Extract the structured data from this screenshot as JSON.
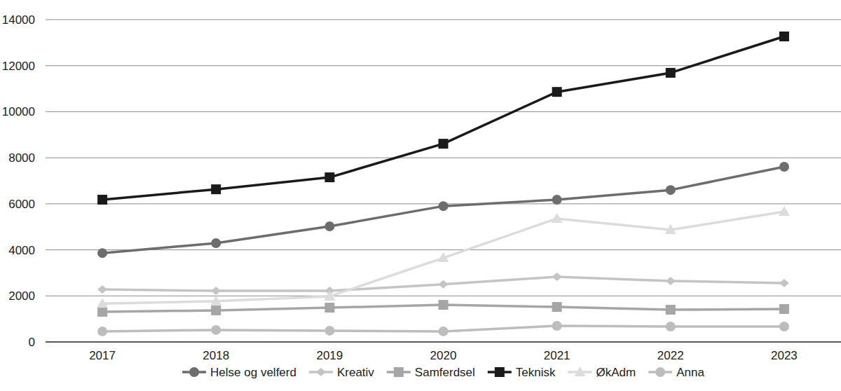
{
  "chart_data": {
    "type": "line",
    "categories": [
      "2017",
      "2018",
      "2019",
      "2020",
      "2021",
      "2022",
      "2023"
    ],
    "series": [
      {
        "name": "Helse og velferd",
        "color": "#6d6d6d",
        "marker": "circle",
        "values": [
          3860,
          4290,
          5020,
          5900,
          6180,
          6600,
          7610
        ]
      },
      {
        "name": "Kreativ",
        "color": "#c4c4c4",
        "marker": "diamond",
        "values": [
          2280,
          2220,
          2220,
          2500,
          2830,
          2650,
          2560
        ]
      },
      {
        "name": "Samferdsel",
        "color": "#a6a6a6",
        "marker": "square",
        "values": [
          1310,
          1370,
          1490,
          1610,
          1520,
          1400,
          1430
        ]
      },
      {
        "name": "Teknisk",
        "color": "#1a1a1a",
        "marker": "square",
        "values": [
          6180,
          6630,
          7150,
          8610,
          10860,
          11690,
          13270
        ]
      },
      {
        "name": "ØkAdm",
        "color": "#dcdcdc",
        "marker": "triangle",
        "values": [
          1670,
          1770,
          1980,
          3650,
          5360,
          4870,
          5660
        ]
      },
      {
        "name": "Anna",
        "color": "#bdbdbd",
        "marker": "circle",
        "values": [
          460,
          520,
          490,
          460,
          700,
          670,
          670
        ]
      }
    ],
    "ylim": [
      0,
      14000
    ],
    "yticks": [
      0,
      2000,
      4000,
      6000,
      8000,
      10000,
      12000,
      14000
    ],
    "grid": true,
    "legend": "bottom"
  }
}
